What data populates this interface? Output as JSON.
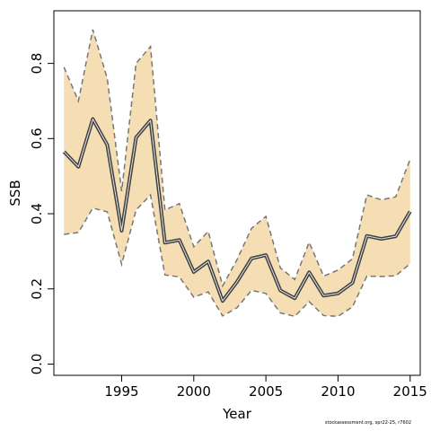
{
  "chart_data": {
    "type": "line",
    "xlabel": "Year",
    "ylabel": "SSB",
    "xlim": [
      1990.3,
      2015.7
    ],
    "ylim": [
      -0.03,
      0.94
    ],
    "x_ticks": [
      1995,
      2000,
      2005,
      2010,
      2015
    ],
    "y_ticks": [
      0.0,
      0.2,
      0.4,
      0.6,
      0.8
    ],
    "x_tick_labels": [
      "1995",
      "2000",
      "2005",
      "2010",
      "2015"
    ],
    "y_tick_labels": [
      "0.0",
      "0.2",
      "0.4",
      "0.6",
      "0.8"
    ],
    "x": [
      1991,
      1992,
      1993,
      1994,
      1995,
      1996,
      1997,
      1998,
      1999,
      2000,
      2001,
      2002,
      2003,
      2004,
      2005,
      2006,
      2007,
      2008,
      2009,
      2010,
      2011,
      2012,
      2013,
      2014,
      2015
    ],
    "series": [
      {
        "role": "estimate",
        "color": "#404040",
        "values": [
          0.565,
          0.525,
          0.652,
          0.583,
          0.355,
          0.603,
          0.648,
          0.323,
          0.33,
          0.245,
          0.273,
          0.168,
          0.219,
          0.281,
          0.29,
          0.196,
          0.175,
          0.244,
          0.182,
          0.188,
          0.216,
          0.341,
          0.333,
          0.34,
          0.406
        ]
      },
      {
        "role": "upper",
        "color": "#777777",
        "values": [
          0.79,
          0.7,
          0.89,
          0.76,
          0.46,
          0.8,
          0.845,
          0.41,
          0.427,
          0.312,
          0.353,
          0.208,
          0.278,
          0.361,
          0.393,
          0.256,
          0.225,
          0.324,
          0.234,
          0.25,
          0.28,
          0.45,
          0.437,
          0.445,
          0.545
        ]
      },
      {
        "role": "lower",
        "color": "#777777",
        "values": [
          0.345,
          0.35,
          0.415,
          0.405,
          0.265,
          0.41,
          0.45,
          0.237,
          0.232,
          0.178,
          0.192,
          0.128,
          0.15,
          0.196,
          0.188,
          0.136,
          0.127,
          0.166,
          0.129,
          0.127,
          0.152,
          0.234,
          0.233,
          0.235,
          0.267
        ]
      }
    ],
    "band_color": "#f5deb3",
    "grid": false,
    "legend": "none"
  },
  "footnote": "stockassessment.org, spr22-25, r7602"
}
